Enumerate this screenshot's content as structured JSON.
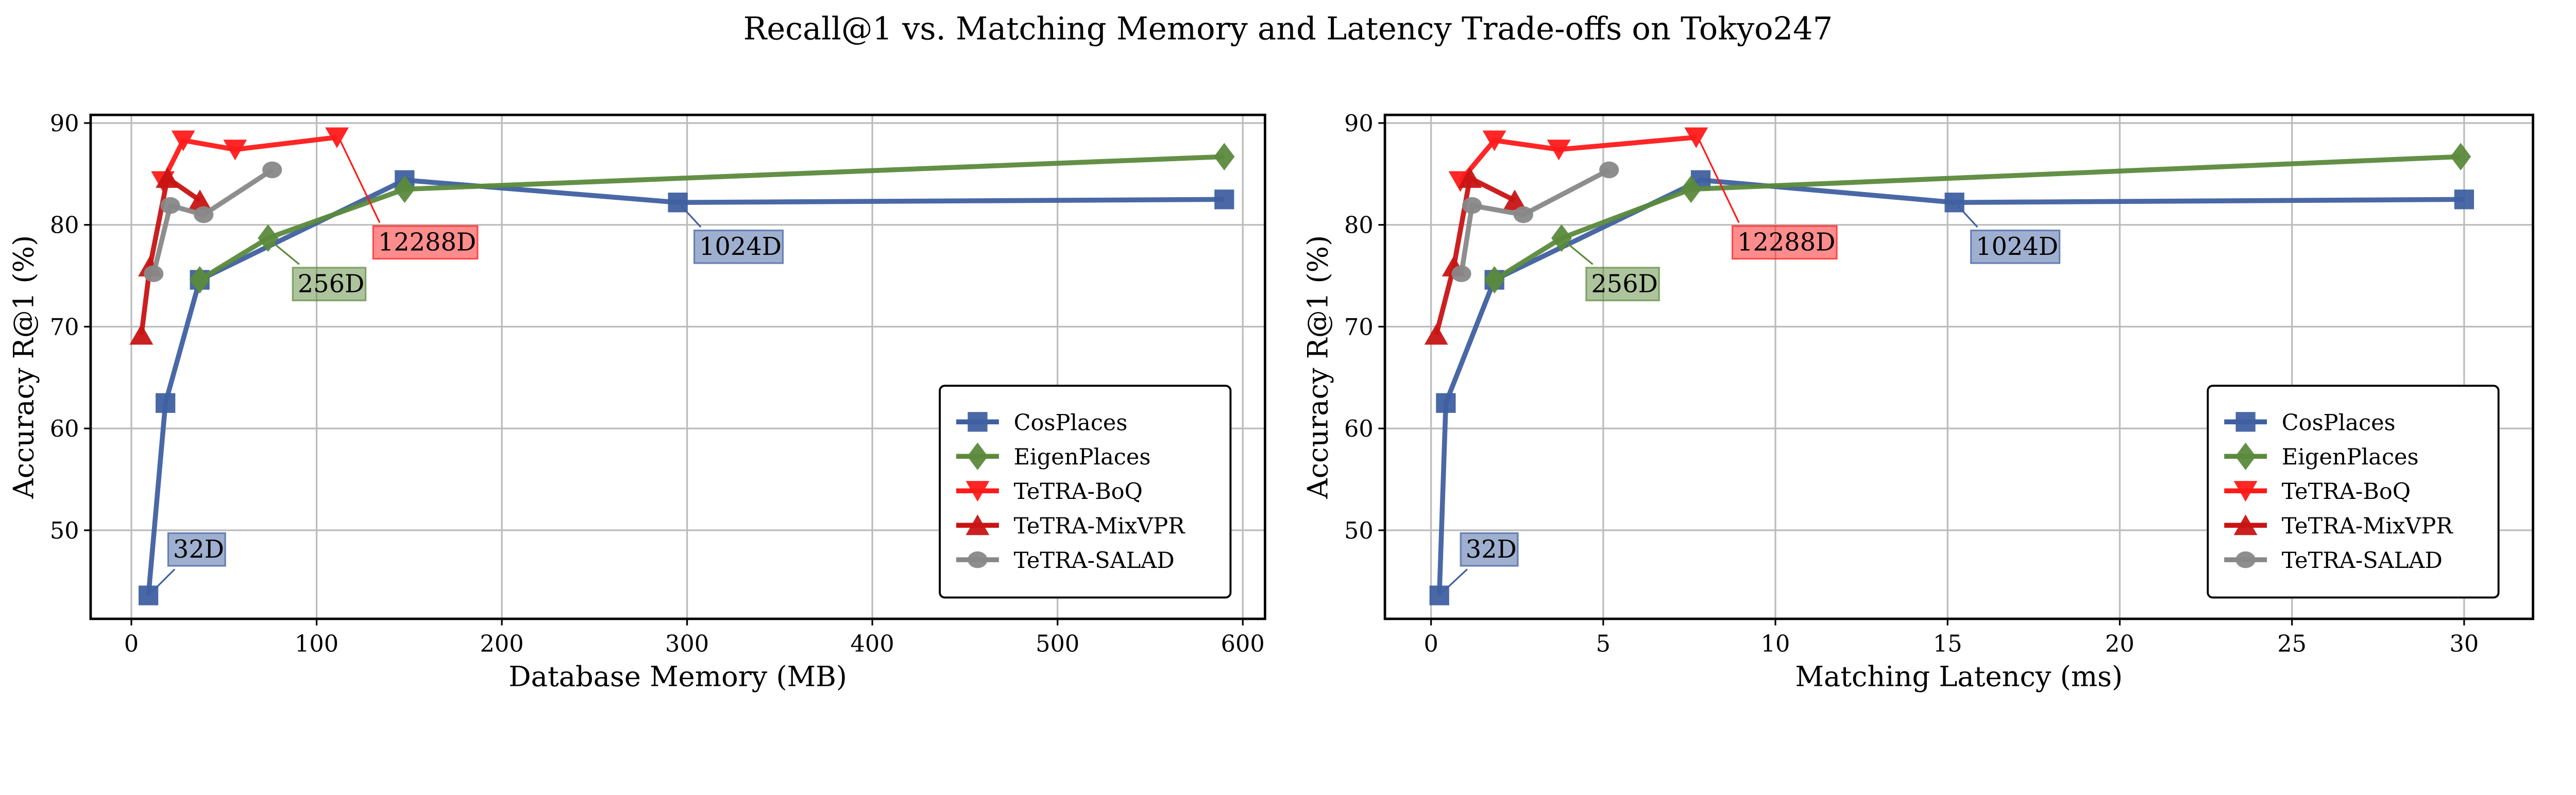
{
  "title": "Recall@1 vs. Matching Memory and Latency Trade-offs on Tokyo247",
  "colors": {
    "CosPlaces": "#3f60a0",
    "EigenPlaces": "#5b8a3c",
    "TeTRA-BoQ": "#ff1a1a",
    "TeTRA-MixVPR": "#c81414",
    "TeTRA-SALAD": "#888888"
  },
  "chart_data": [
    {
      "type": "line",
      "xlabel": "Database Memory (MB)",
      "ylabel": "Accuracy R@1 (%)",
      "xlim": [
        -22,
        612
      ],
      "ylim": [
        41.3,
        90.8
      ],
      "xticks": [
        0,
        100,
        200,
        300,
        400,
        500,
        600
      ],
      "yticks": [
        50,
        60,
        70,
        80,
        90
      ],
      "grid": true,
      "legend": "lower-right",
      "series": [
        {
          "name": "CosPlaces",
          "marker": "square",
          "x": [
            9.2,
            18.4,
            36.9,
            147.5,
            295,
            590
          ],
          "y": [
            43.6,
            62.5,
            74.6,
            84.4,
            82.2,
            82.5
          ]
        },
        {
          "name": "EigenPlaces",
          "marker": "diamond",
          "x": [
            36.9,
            73.8,
            147.5,
            590
          ],
          "y": [
            74.6,
            78.7,
            83.5,
            86.7
          ]
        },
        {
          "name": "TeTRA-BoQ",
          "marker": "triangle-down",
          "x": [
            17,
            28,
            56,
            111
          ],
          "y": [
            84.3,
            88.3,
            87.4,
            88.6
          ]
        },
        {
          "name": "TeTRA-MixVPR",
          "marker": "triangle-up",
          "x": [
            5.4,
            10,
            19.5,
            37
          ],
          "y": [
            69.2,
            75.9,
            84.6,
            82.4
          ]
        },
        {
          "name": "TeTRA-SALAD",
          "marker": "circle",
          "x": [
            12,
            21,
            39,
            76
          ],
          "y": [
            75.2,
            81.9,
            81.0,
            85.4
          ]
        }
      ],
      "annotations": [
        {
          "text": "32D",
          "series": "CosPlaces",
          "point": 0
        },
        {
          "text": "256D",
          "series": "EigenPlaces",
          "point": 1
        },
        {
          "text": "12288D",
          "series": "TeTRA-BoQ",
          "point": 3
        },
        {
          "text": "1024D",
          "series": "CosPlaces",
          "point": 4
        }
      ]
    },
    {
      "type": "line",
      "xlabel": "Matching Latency (ms)",
      "ylabel": "Accuracy R@1 (%)",
      "xlim": [
        -1.34,
        32.0
      ],
      "ylim": [
        41.3,
        90.8
      ],
      "xticks": [
        0,
        5,
        10,
        15,
        20,
        25,
        30
      ],
      "yticks": [
        50,
        60,
        70,
        80,
        90
      ],
      "grid": true,
      "legend": "lower-right",
      "series": [
        {
          "name": "CosPlaces",
          "marker": "square",
          "x": [
            0.24,
            0.43,
            1.84,
            7.83,
            15.2,
            30.0
          ],
          "y": [
            43.6,
            62.5,
            74.6,
            84.4,
            82.2,
            82.5
          ]
        },
        {
          "name": "EigenPlaces",
          "marker": "diamond",
          "x": [
            1.84,
            3.79,
            7.55,
            29.9
          ],
          "y": [
            74.6,
            78.7,
            83.5,
            86.7
          ]
        },
        {
          "name": "TeTRA-BoQ",
          "marker": "triangle-down",
          "x": [
            0.85,
            1.84,
            3.71,
            7.7
          ],
          "y": [
            84.3,
            88.3,
            87.4,
            88.6
          ]
        },
        {
          "name": "TeTRA-MixVPR",
          "marker": "triangle-up",
          "x": [
            0.15,
            0.66,
            1.13,
            2.43
          ],
          "y": [
            69.2,
            75.9,
            84.6,
            82.4
          ]
        },
        {
          "name": "TeTRA-SALAD",
          "marker": "circle",
          "x": [
            0.88,
            1.19,
            2.68,
            5.17
          ],
          "y": [
            75.2,
            81.9,
            81.0,
            85.4
          ]
        }
      ],
      "annotations": [
        {
          "text": "32D",
          "series": "CosPlaces",
          "point": 0
        },
        {
          "text": "256D",
          "series": "EigenPlaces",
          "point": 1
        },
        {
          "text": "12288D",
          "series": "TeTRA-BoQ",
          "point": 3
        },
        {
          "text": "1024D",
          "series": "CosPlaces",
          "point": 4
        }
      ]
    }
  ]
}
